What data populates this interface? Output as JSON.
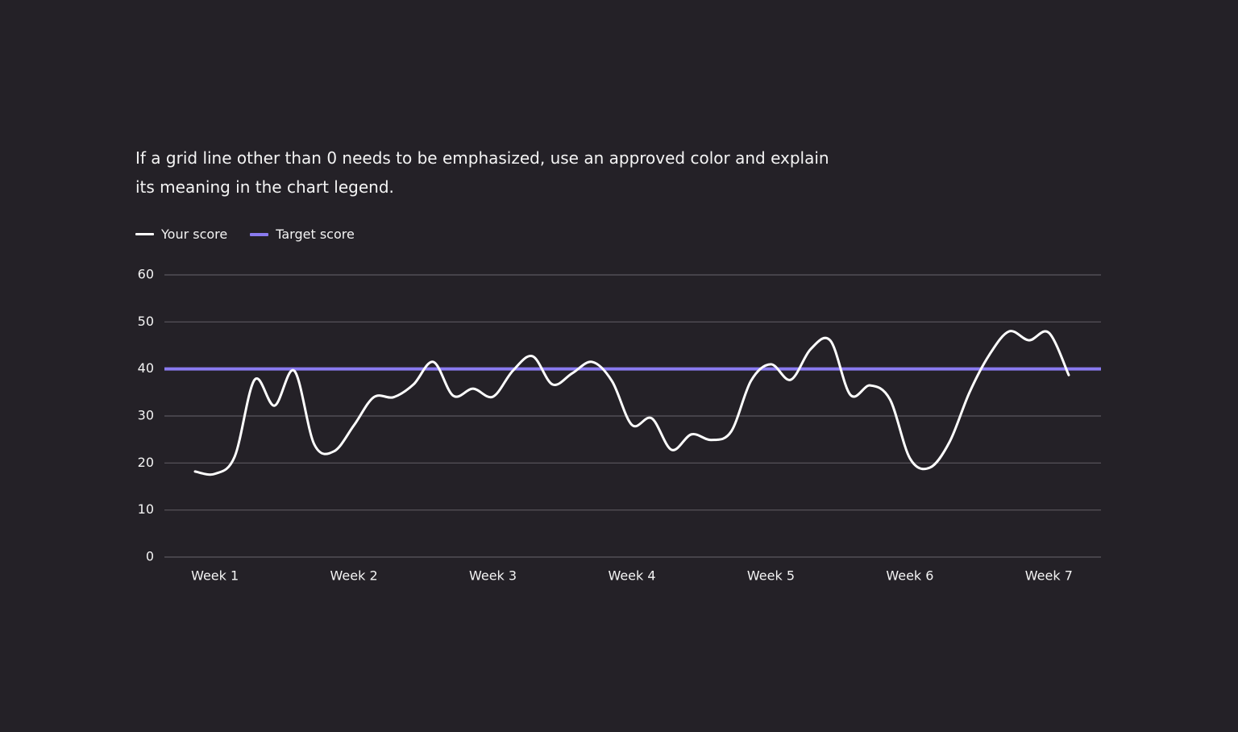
{
  "chart_data": {
    "type": "line",
    "subtitle": "If a grid line other than 0 needs to be emphasized, use an approved color and explain its meaning in the chart legend.",
    "categories": [
      null,
      "Week 1",
      null,
      null,
      null,
      null,
      null,
      null,
      "Week 2",
      null,
      null,
      null,
      null,
      null,
      null,
      "Week 3",
      null,
      null,
      null,
      null,
      null,
      null,
      "Week 4",
      null,
      null,
      null,
      null,
      null,
      null,
      "Week 5",
      null,
      null,
      null,
      null,
      null,
      null,
      "Week 6",
      null,
      null,
      null,
      null,
      null,
      null,
      "Week 7",
      null
    ],
    "series": [
      {
        "name": "Your score",
        "color": "#ffffff",
        "values": [
          18.2,
          17.7,
          21.4,
          37.7,
          32.2,
          39.6,
          24,
          22.5,
          28,
          34,
          34,
          36.7,
          41.5,
          34.3,
          35.8,
          34.1,
          39.6,
          42.7,
          36.7,
          39.1,
          41.5,
          37.4,
          28.1,
          29.5,
          22.8,
          26.1,
          24.9,
          26.7,
          37.5,
          41,
          37.7,
          44.2,
          46,
          34.5,
          36.5,
          33.5,
          21,
          19,
          24.5,
          35,
          43,
          48,
          46.1,
          47.7,
          38.7
        ]
      }
    ],
    "reference_lines": [
      {
        "name": "Target score",
        "value": 40,
        "color": "#8a7bf0"
      }
    ],
    "ylim": [
      0,
      60
    ],
    "yticks": [
      0,
      10,
      20,
      30,
      40,
      50,
      60
    ],
    "grid": true
  }
}
